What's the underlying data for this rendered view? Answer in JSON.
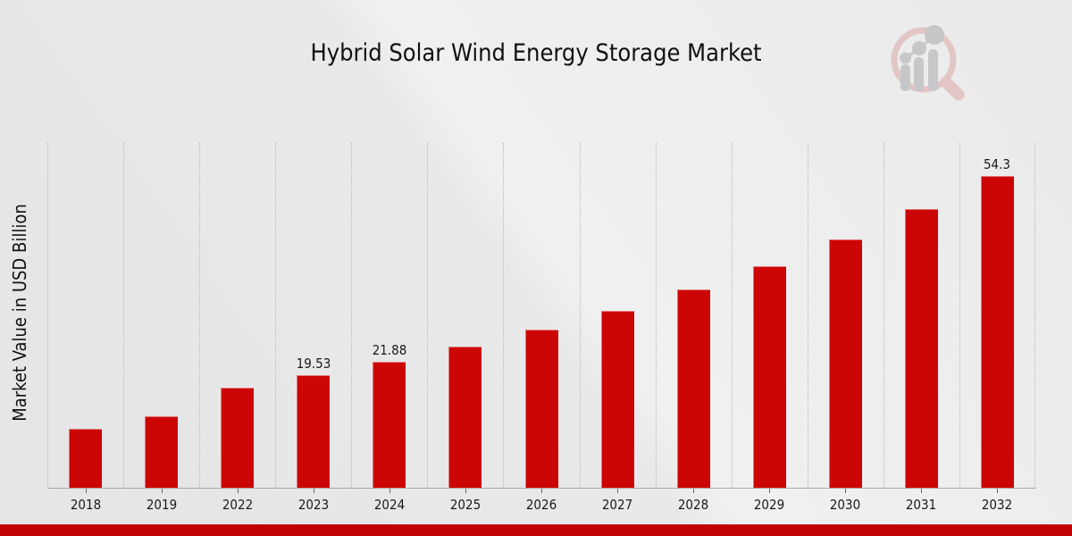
{
  "page": {
    "title": "Hybrid Solar Wind Energy Storage Market"
  },
  "colors": {
    "bar": "#CC0605",
    "bottom_band": "#C00404",
    "gridline": "#b8b8b8",
    "axis": "#a9a9a9",
    "text": "#1a1a1a",
    "logo_ring": "#E2C6C6",
    "logo_bars": "#C7C7CA"
  },
  "logo": {
    "name": "magnifier-growth-chart-logo"
  },
  "chart_data": {
    "type": "bar",
    "title": "Hybrid Solar Wind Energy Storage Market",
    "xlabel": "",
    "ylabel": "Market Value in USD Billion",
    "categories": [
      "2018",
      "2019",
      "2022",
      "2023",
      "2024",
      "2025",
      "2026",
      "2027",
      "2028",
      "2029",
      "2030",
      "2031",
      "2032"
    ],
    "values": [
      10.2,
      12.5,
      17.43,
      19.53,
      21.88,
      24.51,
      27.46,
      30.76,
      34.46,
      38.61,
      43.25,
      48.45,
      54.3
    ],
    "data_labels": {
      "2023": "19.53",
      "2024": "21.88",
      "2032": "54.3"
    },
    "ylim": [
      0,
      60
    ],
    "grid": "vertical-dotted",
    "legend": "none",
    "bar_color": "#CC0605"
  }
}
